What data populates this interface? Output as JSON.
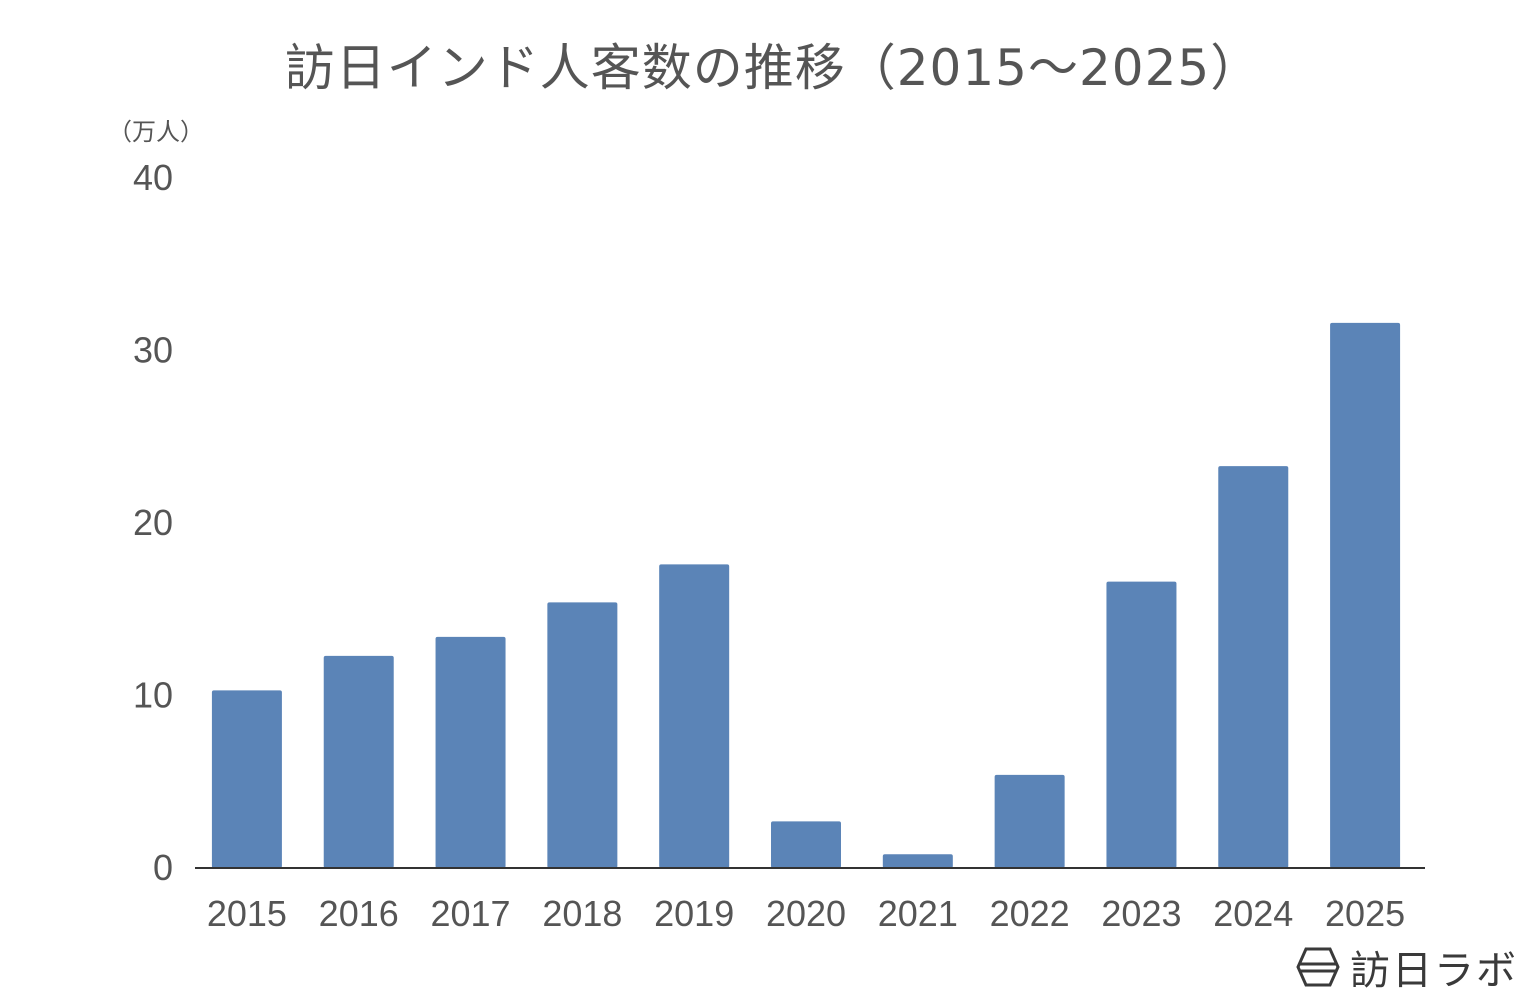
{
  "chart_data": {
    "type": "bar",
    "title": "訪日インド人客数の推移（2015～2025）",
    "ylabel": "（万人）",
    "xlabel": "",
    "categories": [
      "2015",
      "2016",
      "2017",
      "2018",
      "2019",
      "2020",
      "2021",
      "2022",
      "2023",
      "2024",
      "2025"
    ],
    "values": [
      10.3,
      12.3,
      13.4,
      15.4,
      17.6,
      2.7,
      0.8,
      5.4,
      16.6,
      23.3,
      31.6
    ],
    "ylim": [
      0,
      40
    ],
    "yticks": [
      "0",
      "10",
      "20",
      "30",
      "40"
    ],
    "grid": false,
    "bar_color": "#5b84b7"
  },
  "watermark": {
    "text": "訪日ラボ",
    "icon": "hexagon-logo-icon"
  }
}
